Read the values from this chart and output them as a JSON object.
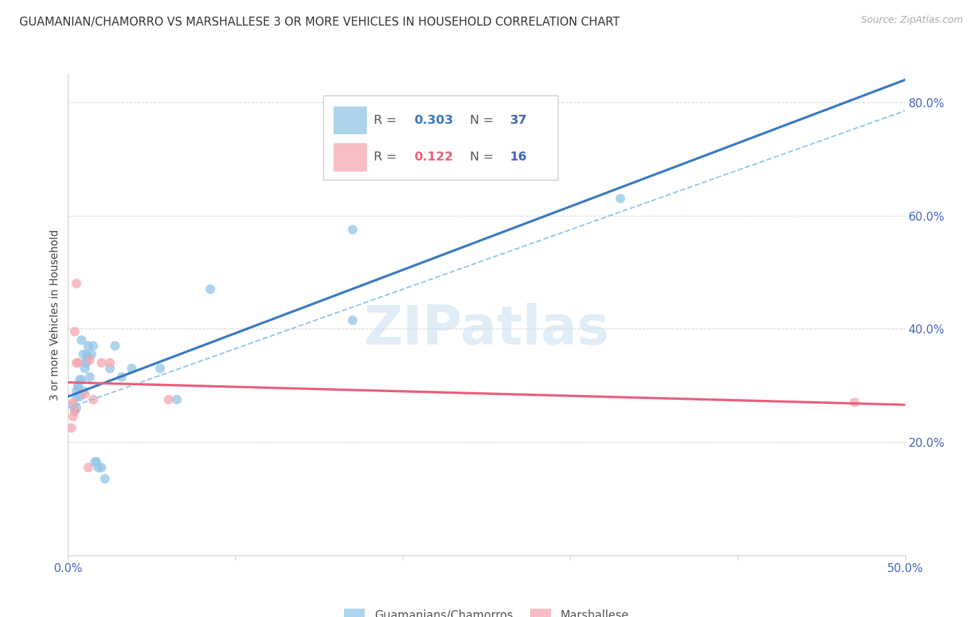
{
  "title": "GUAMANIAN/CHAMORRO VS MARSHALLESE 3 OR MORE VEHICLES IN HOUSEHOLD CORRELATION CHART",
  "source_text": "Source: ZipAtlas.com",
  "ylabel": "3 or more Vehicles in Household",
  "watermark": "ZIPatlas",
  "legend_blue_r_val": "0.303",
  "legend_blue_n_val": "37",
  "legend_pink_r_val": "0.122",
  "legend_pink_n_val": "16",
  "legend_blue_label": "Guamanians/Chamorros",
  "legend_pink_label": "Marshallese",
  "xmin": 0.0,
  "xmax": 0.5,
  "ymin": 0.0,
  "ymax": 0.85,
  "right_yticks": [
    0.2,
    0.4,
    0.6,
    0.8
  ],
  "right_ytick_labels": [
    "20.0%",
    "40.0%",
    "60.0%",
    "80.0%"
  ],
  "xticks": [
    0.0,
    0.1,
    0.2,
    0.3,
    0.4,
    0.5
  ],
  "xtick_labels": [
    "0.0%",
    "",
    "",
    "",
    "",
    "50.0%"
  ],
  "blue_color": "#93c6e8",
  "pink_color": "#f4a7b0",
  "line_blue_color": "#3a7abf",
  "line_pink_color": "#e8607a",
  "dashed_color": "#93c6e8",
  "axis_label_color": "#4466bb",
  "grid_color": "#d8d8d8",
  "title_color": "#333333",
  "source_color": "#aaaaaa",
  "blue_scatter_x": [
    0.003,
    0.004,
    0.005,
    0.005,
    0.005,
    0.006,
    0.006,
    0.007,
    0.007,
    0.008,
    0.008,
    0.009,
    0.009,
    0.01,
    0.01,
    0.011,
    0.011,
    0.012,
    0.012,
    0.013,
    0.014,
    0.015,
    0.016,
    0.017,
    0.018,
    0.02,
    0.022,
    0.025,
    0.028,
    0.032,
    0.038,
    0.055,
    0.065,
    0.085,
    0.17,
    0.17,
    0.33
  ],
  "blue_scatter_y": [
    0.265,
    0.255,
    0.26,
    0.29,
    0.28,
    0.3,
    0.295,
    0.31,
    0.28,
    0.31,
    0.38,
    0.355,
    0.29,
    0.34,
    0.33,
    0.34,
    0.355,
    0.37,
    0.35,
    0.315,
    0.355,
    0.37,
    0.165,
    0.165,
    0.155,
    0.155,
    0.135,
    0.33,
    0.37,
    0.315,
    0.33,
    0.33,
    0.275,
    0.47,
    0.575,
    0.415,
    0.63
  ],
  "pink_scatter_x": [
    0.002,
    0.003,
    0.003,
    0.004,
    0.004,
    0.005,
    0.005,
    0.006,
    0.01,
    0.012,
    0.013,
    0.015,
    0.02,
    0.025,
    0.06,
    0.47
  ],
  "pink_scatter_y": [
    0.225,
    0.27,
    0.245,
    0.395,
    0.255,
    0.48,
    0.34,
    0.34,
    0.285,
    0.155,
    0.345,
    0.275,
    0.34,
    0.34,
    0.275,
    0.27
  ],
  "blue_marker_size": 100,
  "pink_marker_size": 100,
  "dashed_slope": 1.05,
  "dashed_intercept": 0.26
}
